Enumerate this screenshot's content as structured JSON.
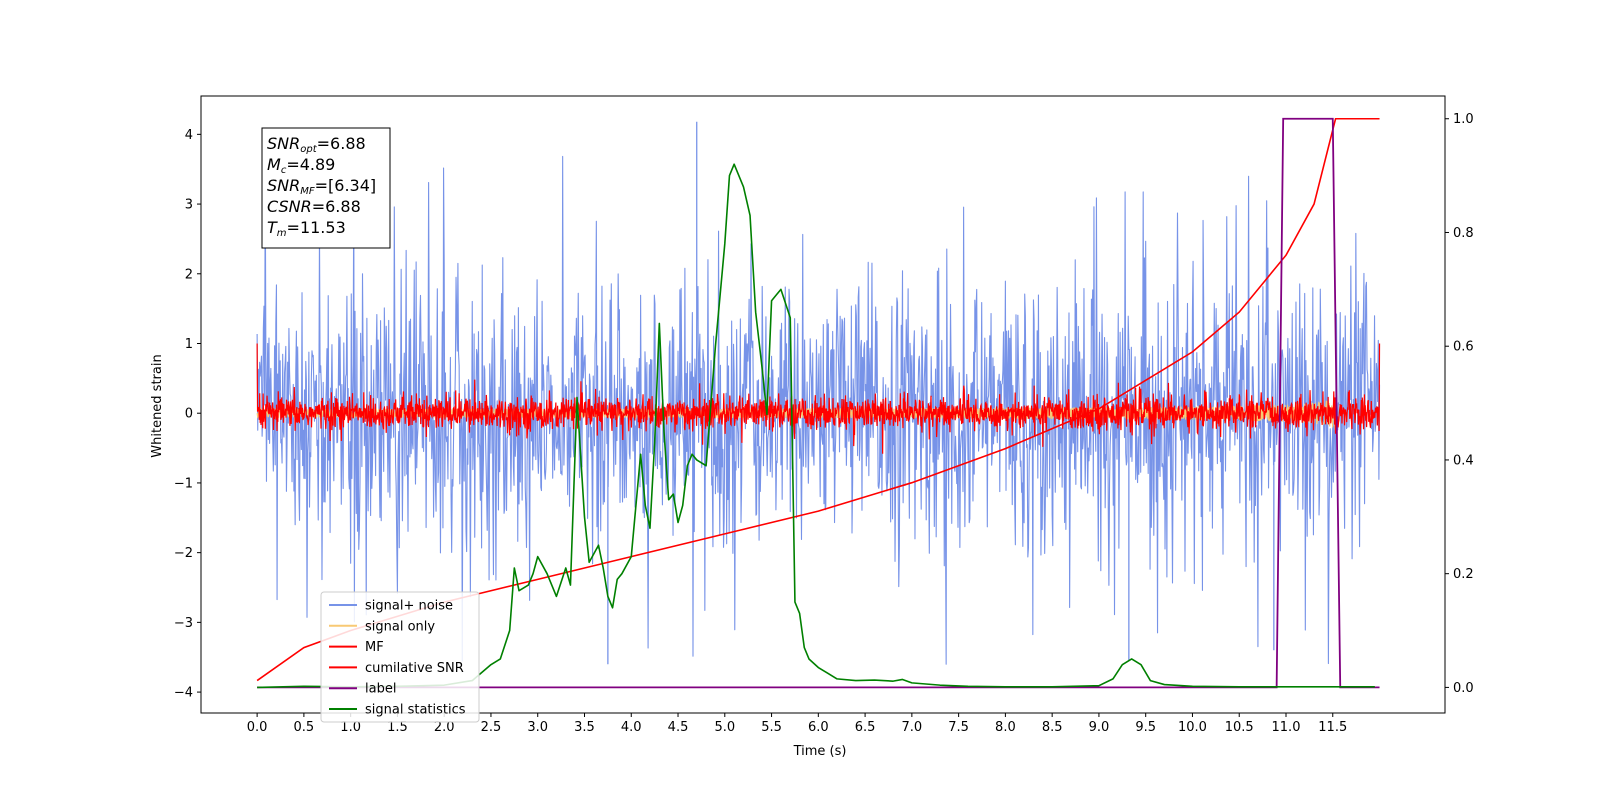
{
  "chart_data": {
    "type": "line",
    "xlabel": "Time (s)",
    "ylabel": "Whitened strain",
    "xlim": [
      -0.6,
      12.7
    ],
    "ylim": [
      -4.3,
      4.55
    ],
    "y2lim": [
      -0.045,
      1.04
    ],
    "grid": false,
    "legend_position": "lower-left",
    "x_ticks": [
      "0.0",
      "0.5",
      "1.0",
      "1.5",
      "2.0",
      "2.5",
      "3.0",
      "3.5",
      "4.0",
      "4.5",
      "5.0",
      "5.5",
      "6.0",
      "6.5",
      "7.0",
      "7.5",
      "8.0",
      "8.5",
      "9.0",
      "9.5",
      "10.0",
      "10.5",
      "11.0",
      "11.5"
    ],
    "y_ticks": [
      "4",
      "3",
      "2",
      "1",
      "0",
      "−1",
      "−2",
      "−3",
      "−4"
    ],
    "y2_ticks": [
      "1.0",
      "0.8",
      "0.6",
      "0.4",
      "0.2",
      "0.0"
    ],
    "annotation": [
      {
        "sym": "SNR",
        "sub": "opt",
        "val": "=6.88"
      },
      {
        "sym": "M",
        "sub": "c",
        "val": "=4.89"
      },
      {
        "sym": "SNR",
        "sub": "MF",
        "val": "=[6.34]"
      },
      {
        "sym": "CSNR",
        "sub": "",
        "val": "=6.88"
      },
      {
        "sym": "T",
        "sub": "m",
        "val": "=11.53"
      }
    ],
    "series": [
      {
        "name": "signal+ noise",
        "color": "#7793e8",
        "axis": "left",
        "kind": "noise",
        "t_range": [
          0,
          12
        ],
        "amplitude_sd": 1.0,
        "peak_max": 4.18,
        "peak_min": -3.6
      },
      {
        "name": "signal only",
        "color": "#f8c974",
        "axis": "left",
        "kind": "chirp",
        "t_range": [
          0,
          11.53
        ],
        "amplitude_end": 0.32
      },
      {
        "name": "MF",
        "color": "#ff0000",
        "axis": "left",
        "kind": "noise",
        "t_range": [
          0,
          12
        ],
        "amplitude_sd": 0.12,
        "start_value": 1.0,
        "end_value": 1.0
      },
      {
        "name": "cumilative SNR",
        "color": "#ff0000",
        "axis": "right",
        "x": [
          0,
          0.5,
          1.0,
          2.0,
          3.0,
          4.0,
          5.0,
          6.0,
          7.0,
          8.0,
          9.0,
          10.0,
          10.5,
          11.0,
          11.3,
          11.53,
          11.6,
          12.0
        ],
        "y": [
          0.012,
          0.07,
          0.1,
          0.15,
          0.19,
          0.23,
          0.27,
          0.31,
          0.36,
          0.42,
          0.49,
          0.59,
          0.66,
          0.76,
          0.85,
          1.0,
          1.0,
          1.0
        ]
      },
      {
        "name": "label",
        "color": "#800080",
        "axis": "right",
        "x": [
          0,
          10.9,
          10.97,
          11.5,
          11.58,
          12.0
        ],
        "y": [
          0,
          0,
          1,
          1,
          0,
          0
        ]
      },
      {
        "name": "signal statistics",
        "color": "#008000",
        "axis": "right",
        "x": [
          0,
          0.5,
          1.0,
          1.5,
          2.0,
          2.3,
          2.5,
          2.6,
          2.7,
          2.75,
          2.8,
          2.9,
          2.95,
          3.0,
          3.1,
          3.2,
          3.3,
          3.35,
          3.42,
          3.5,
          3.55,
          3.65,
          3.7,
          3.75,
          3.8,
          3.85,
          3.9,
          4.0,
          4.1,
          4.15,
          4.2,
          4.25,
          4.3,
          4.35,
          4.4,
          4.45,
          4.5,
          4.55,
          4.6,
          4.65,
          4.7,
          4.8,
          4.9,
          5.0,
          5.05,
          5.1,
          5.2,
          5.27,
          5.33,
          5.4,
          5.45,
          5.5,
          5.55,
          5.6,
          5.7,
          5.75,
          5.8,
          5.85,
          5.9,
          6.0,
          6.1,
          6.2,
          6.4,
          6.6,
          6.8,
          6.9,
          7.0,
          7.3,
          7.6,
          8.0,
          8.5,
          9.0,
          9.15,
          9.25,
          9.35,
          9.45,
          9.55,
          9.7,
          10.0,
          10.5,
          11.0,
          11.5,
          11.95
        ],
        "y": [
          0.0,
          0.002,
          0.001,
          0.002,
          0.004,
          0.012,
          0.04,
          0.05,
          0.1,
          0.21,
          0.17,
          0.18,
          0.2,
          0.23,
          0.2,
          0.16,
          0.21,
          0.18,
          0.51,
          0.3,
          0.22,
          0.25,
          0.21,
          0.16,
          0.14,
          0.19,
          0.2,
          0.23,
          0.41,
          0.32,
          0.28,
          0.43,
          0.64,
          0.45,
          0.33,
          0.34,
          0.29,
          0.32,
          0.39,
          0.41,
          0.4,
          0.39,
          0.6,
          0.78,
          0.9,
          0.92,
          0.88,
          0.83,
          0.66,
          0.56,
          0.48,
          0.68,
          0.69,
          0.7,
          0.65,
          0.15,
          0.13,
          0.07,
          0.05,
          0.035,
          0.025,
          0.015,
          0.012,
          0.013,
          0.011,
          0.014,
          0.008,
          0.004,
          0.002,
          0.001,
          0.001,
          0.003,
          0.015,
          0.04,
          0.05,
          0.04,
          0.012,
          0.005,
          0.002,
          0.001,
          0.001,
          0.001,
          0.001
        ]
      }
    ]
  }
}
